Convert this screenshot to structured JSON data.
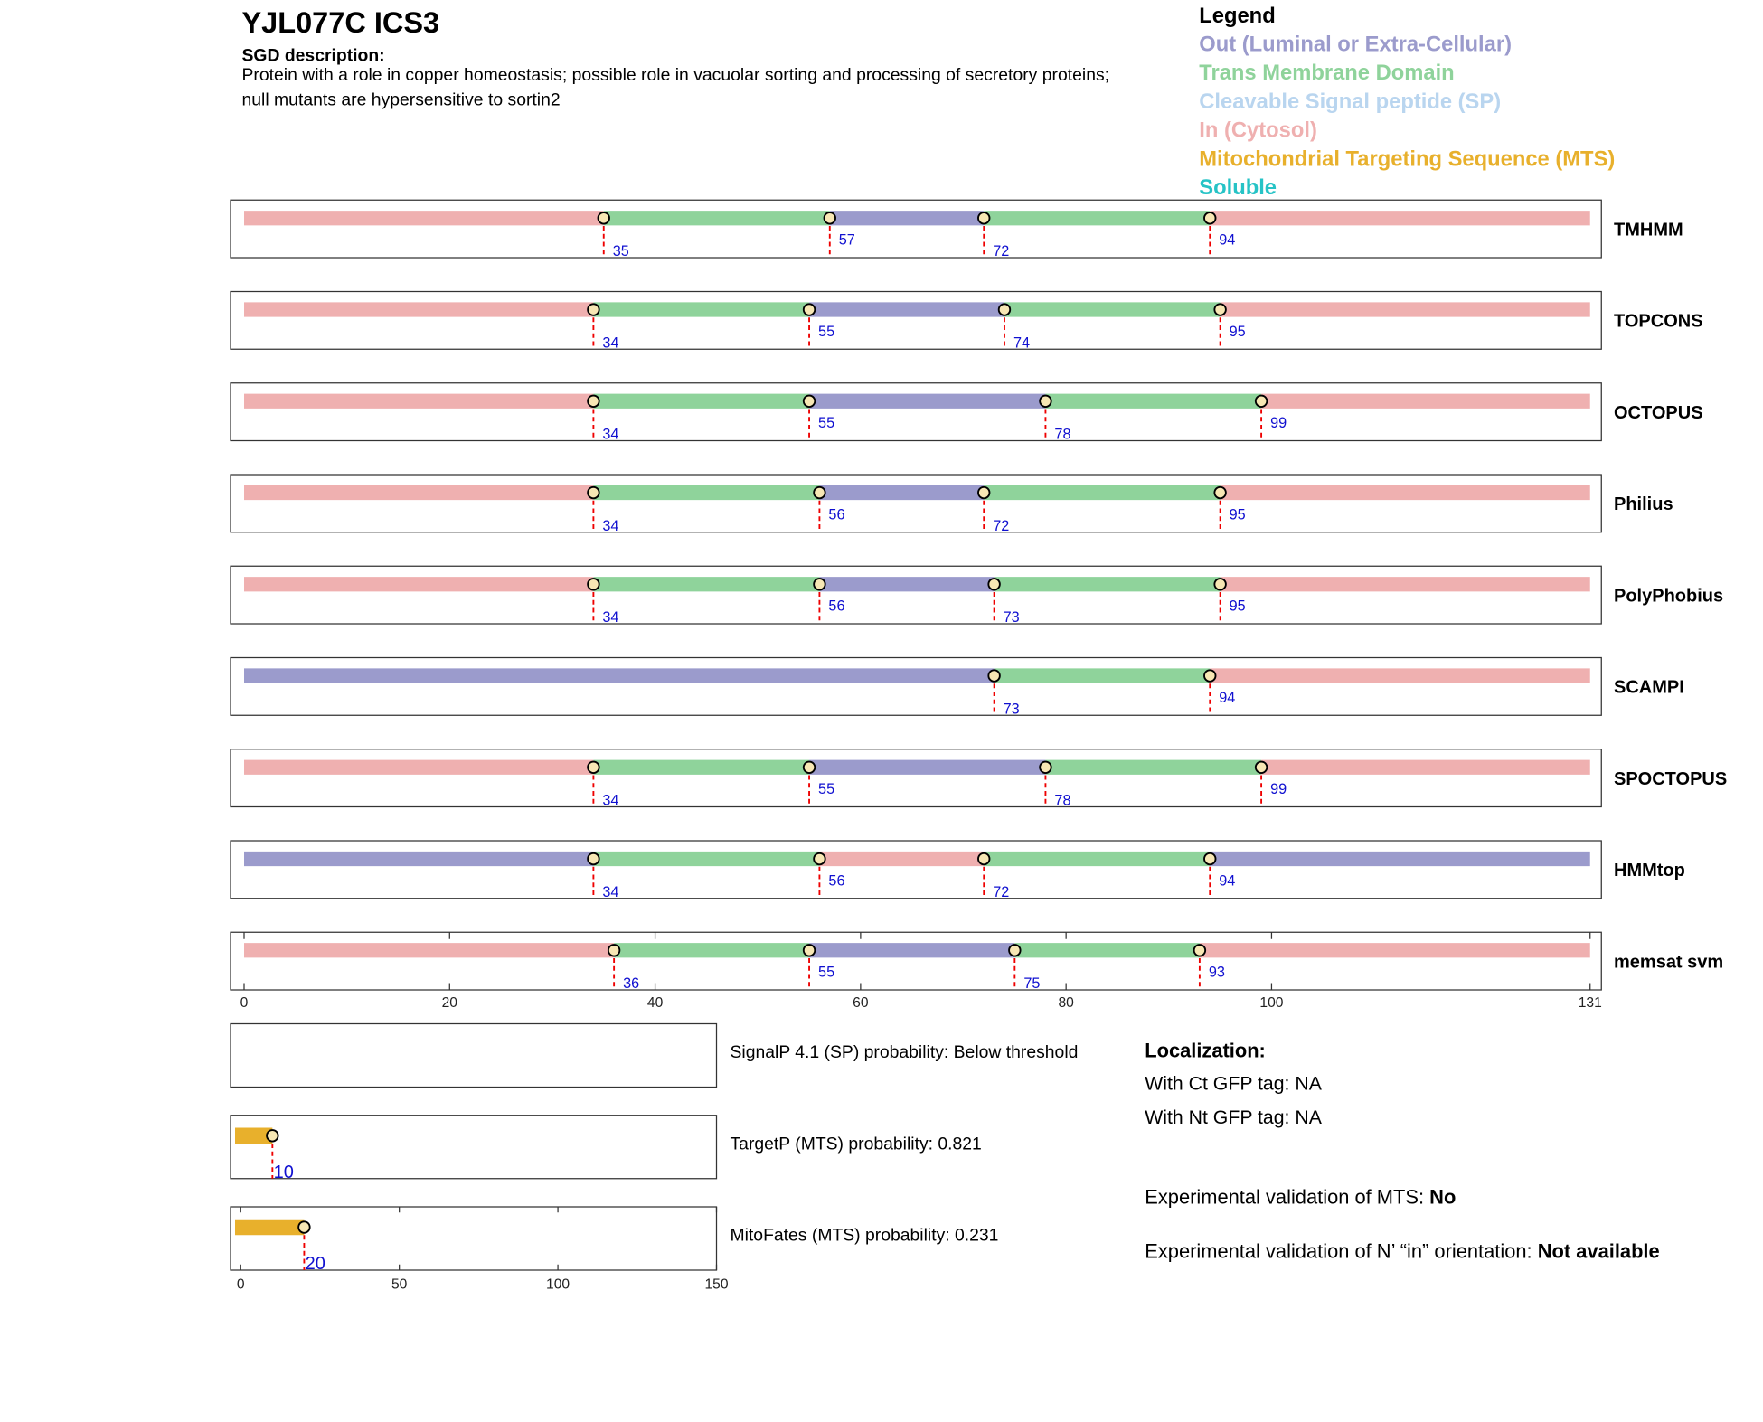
{
  "header": {
    "title": "YJL077C  ICS3",
    "description_label": "SGD description:",
    "description": "Protein with a role in copper homeostasis; possible role in vacuolar sorting and processing of secretory proteins; null mutants are hypersensitive to sortin2"
  },
  "legend": {
    "title": "Legend",
    "items": [
      {
        "label": "Out (Luminal or Extra-Cellular)",
        "color": "#9b9bcc"
      },
      {
        "label": "Trans Membrane Domain",
        "color": "#8fd39b"
      },
      {
        "label": "Cleavable Signal peptide (SP)",
        "color": "#b9d5ef"
      },
      {
        "label": "In (Cytosol)",
        "color": "#efb0b0"
      },
      {
        "label": "Mitochondrial Targeting Sequence (MTS)",
        "color": "#e8b02c"
      },
      {
        "label": "Soluble",
        "color": "#26c3c6"
      }
    ]
  },
  "topology": {
    "xlim": [
      0,
      131
    ],
    "xticks": [
      0,
      20,
      40,
      60,
      80,
      100,
      131
    ],
    "colors": {
      "out": "#9b9bcc",
      "tm": "#8fd39b",
      "in": "#efb0b0"
    },
    "tracks": [
      {
        "name": "TMHMM",
        "boundaries": [
          35,
          57,
          72,
          94
        ],
        "segments": [
          "in",
          "tm",
          "out",
          "tm",
          "in"
        ]
      },
      {
        "name": "TOPCONS",
        "boundaries": [
          34,
          55,
          74,
          95
        ],
        "segments": [
          "in",
          "tm",
          "out",
          "tm",
          "in"
        ]
      },
      {
        "name": "OCTOPUS",
        "boundaries": [
          34,
          55,
          78,
          99
        ],
        "segments": [
          "in",
          "tm",
          "out",
          "tm",
          "in"
        ]
      },
      {
        "name": "Philius",
        "boundaries": [
          34,
          56,
          72,
          95
        ],
        "segments": [
          "in",
          "tm",
          "out",
          "tm",
          "in"
        ]
      },
      {
        "name": "PolyPhobius",
        "boundaries": [
          34,
          56,
          73,
          95
        ],
        "segments": [
          "in",
          "tm",
          "out",
          "tm",
          "in"
        ]
      },
      {
        "name": "SCAMPI",
        "boundaries": [
          73,
          94
        ],
        "segments": [
          "out",
          "tm",
          "in"
        ]
      },
      {
        "name": "SPOCTOPUS",
        "boundaries": [
          34,
          55,
          78,
          99
        ],
        "segments": [
          "in",
          "tm",
          "out",
          "tm",
          "in"
        ]
      },
      {
        "name": "HMMtop",
        "boundaries": [
          34,
          56,
          72,
          94
        ],
        "segments": [
          "out",
          "tm",
          "in",
          "tm",
          "out"
        ]
      },
      {
        "name": "memsat svm",
        "boundaries": [
          36,
          55,
          75,
          93
        ],
        "segments": [
          "in",
          "tm",
          "out",
          "tm",
          "in"
        ]
      }
    ]
  },
  "targeting": {
    "xlim": [
      0,
      150
    ],
    "xticks": [
      0,
      50,
      100,
      150
    ],
    "color": "#e8b02c",
    "panels": [
      {
        "text": "SignalP 4.1 (SP) probability: Below threshold",
        "cleavage": null
      },
      {
        "text": "TargetP (MTS) probability: 0.821",
        "cleavage": 10
      },
      {
        "text": "MitoFates (MTS) probability: 0.231",
        "cleavage": 20
      }
    ]
  },
  "localization": {
    "title": "Localization:",
    "lines": [
      "With Ct GFP tag: NA",
      "With Nt GFP tag: NA"
    ],
    "validations": [
      {
        "label": "Experimental validation of MTS: ",
        "value": "No"
      },
      {
        "label": "Experimental validation of N’ “in” orientation: ",
        "value": "Not available"
      }
    ]
  }
}
